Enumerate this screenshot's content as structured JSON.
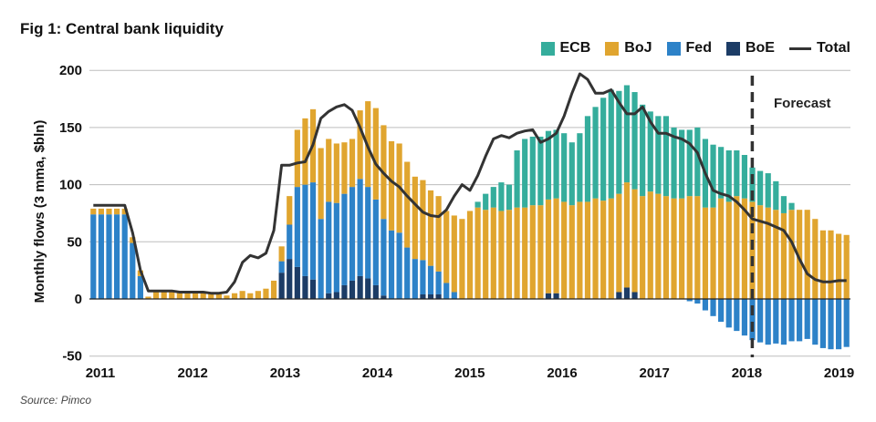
{
  "title": "Fig 1: Central bank liquidity",
  "source": "Source: Pimco",
  "chart_data": {
    "type": "bar",
    "stacked": true,
    "ylabel": "Monthly flows (3 mma, $bln)",
    "ylim": [
      -50,
      200
    ],
    "y_ticks": [
      "200",
      "150",
      "100",
      "50",
      "0",
      "-50"
    ],
    "x_ticks": [
      "2011",
      "2012",
      "2013",
      "2014",
      "2015",
      "2016",
      "2017",
      "2018",
      "2019"
    ],
    "grid": true,
    "legend_position": "top-right",
    "annotation": "Forecast",
    "forecast_start": 2018.0,
    "colors": {
      "ECB": "#35ad9c",
      "BoJ": "#e0a52f",
      "Fed": "#2d82c8",
      "BoE": "#1c3c66",
      "Total": "#333333"
    },
    "series": [
      {
        "name": "ECB",
        "values": [
          0,
          0,
          0,
          0,
          0,
          0,
          0,
          0,
          0,
          0,
          0,
          0,
          0,
          0,
          0,
          0,
          0,
          0,
          0,
          0,
          0,
          0,
          0,
          0,
          0,
          0,
          0,
          0,
          0,
          0,
          0,
          0,
          0,
          0,
          0,
          0,
          0,
          0,
          0,
          0,
          0,
          0,
          0,
          0,
          0,
          0,
          0,
          0,
          0,
          5,
          14,
          18,
          25,
          22,
          50,
          60,
          60,
          60,
          60,
          60,
          60,
          55,
          60,
          75,
          80,
          90,
          95,
          90,
          85,
          85,
          80,
          70,
          68,
          70,
          62,
          60,
          58,
          60,
          60,
          55,
          45,
          45,
          40,
          38,
          30,
          30,
          30,
          25,
          15,
          6,
          0,
          0,
          0,
          0,
          0,
          0,
          0
        ]
      },
      {
        "name": "BoJ",
        "values": [
          5,
          5,
          5,
          5,
          5,
          5,
          5,
          2,
          7,
          7,
          7,
          7,
          6,
          6,
          6,
          6,
          5,
          3,
          5,
          7,
          5,
          7,
          9,
          16,
          13,
          25,
          50,
          58,
          64,
          62,
          55,
          52,
          45,
          42,
          60,
          75,
          80,
          82,
          78,
          78,
          75,
          72,
          70,
          66,
          66,
          63,
          67,
          70,
          77,
          80,
          78,
          80,
          77,
          78,
          80,
          80,
          82,
          82,
          82,
          83,
          85,
          82,
          85,
          85,
          88,
          86,
          88,
          86,
          92,
          90,
          90,
          94,
          92,
          90,
          88,
          88,
          90,
          90,
          80,
          80,
          88,
          85,
          90,
          88,
          85,
          82,
          80,
          78,
          75,
          78,
          78,
          78,
          70,
          60,
          60,
          57,
          56
        ]
      },
      {
        "name": "Fed",
        "values": [
          74,
          74,
          74,
          74,
          74,
          49,
          20,
          0,
          0,
          0,
          0,
          0,
          0,
          0,
          0,
          0,
          0,
          0,
          0,
          0,
          0,
          0,
          0,
          0,
          10,
          30,
          70,
          80,
          85,
          70,
          80,
          78,
          80,
          82,
          85,
          80,
          75,
          67,
          60,
          58,
          45,
          35,
          30,
          25,
          20,
          14,
          6,
          0,
          0,
          0,
          0,
          0,
          0,
          0,
          0,
          0,
          0,
          0,
          0,
          0,
          0,
          0,
          0,
          0,
          0,
          0,
          0,
          0,
          0,
          0,
          0,
          0,
          0,
          0,
          0,
          0,
          -2,
          -4,
          -10,
          -15,
          -20,
          -25,
          -28,
          -32,
          -36,
          -38,
          -40,
          -39,
          -40,
          -37,
          -37,
          -35,
          -40,
          -43,
          -44,
          -44,
          -42
        ]
      },
      {
        "name": "BoE",
        "values": [
          0,
          0,
          0,
          0,
          0,
          0,
          0,
          0,
          0,
          0,
          0,
          0,
          0,
          0,
          0,
          0,
          0,
          0,
          0,
          0,
          0,
          0,
          0,
          0,
          23,
          35,
          28,
          20,
          17,
          0,
          5,
          6,
          12,
          16,
          20,
          18,
          12,
          3,
          0,
          0,
          0,
          0,
          4,
          4,
          4,
          0,
          0,
          0,
          0,
          0,
          0,
          0,
          0,
          0,
          0,
          0,
          0,
          0,
          5,
          5,
          0,
          0,
          0,
          0,
          0,
          0,
          0,
          6,
          10,
          6,
          0,
          0,
          0,
          0,
          0,
          0,
          0,
          0,
          0,
          0,
          0,
          0,
          0,
          0,
          0,
          0,
          0,
          0,
          0,
          0,
          0,
          0,
          0,
          0,
          0,
          0,
          0
        ]
      },
      {
        "name": "Total",
        "values": [
          82,
          82,
          82,
          82,
          82,
          58,
          25,
          7,
          7,
          7,
          7,
          6,
          6,
          6,
          6,
          5,
          5,
          6,
          15,
          32,
          38,
          36,
          40,
          60,
          117,
          117,
          119,
          120,
          135,
          158,
          164,
          168,
          170,
          165,
          150,
          133,
          118,
          110,
          103,
          98,
          90,
          83,
          76,
          73,
          72,
          78,
          90,
          100,
          95,
          108,
          125,
          140,
          143,
          141,
          145,
          147,
          148,
          137,
          140,
          145,
          160,
          180,
          197,
          192,
          180,
          180,
          183,
          172,
          162,
          162,
          168,
          155,
          145,
          145,
          142,
          140,
          136,
          128,
          110,
          95,
          92,
          90,
          85,
          78,
          70,
          68,
          66,
          63,
          60,
          50,
          35,
          22,
          17,
          15,
          15,
          16,
          16
        ]
      }
    ]
  }
}
